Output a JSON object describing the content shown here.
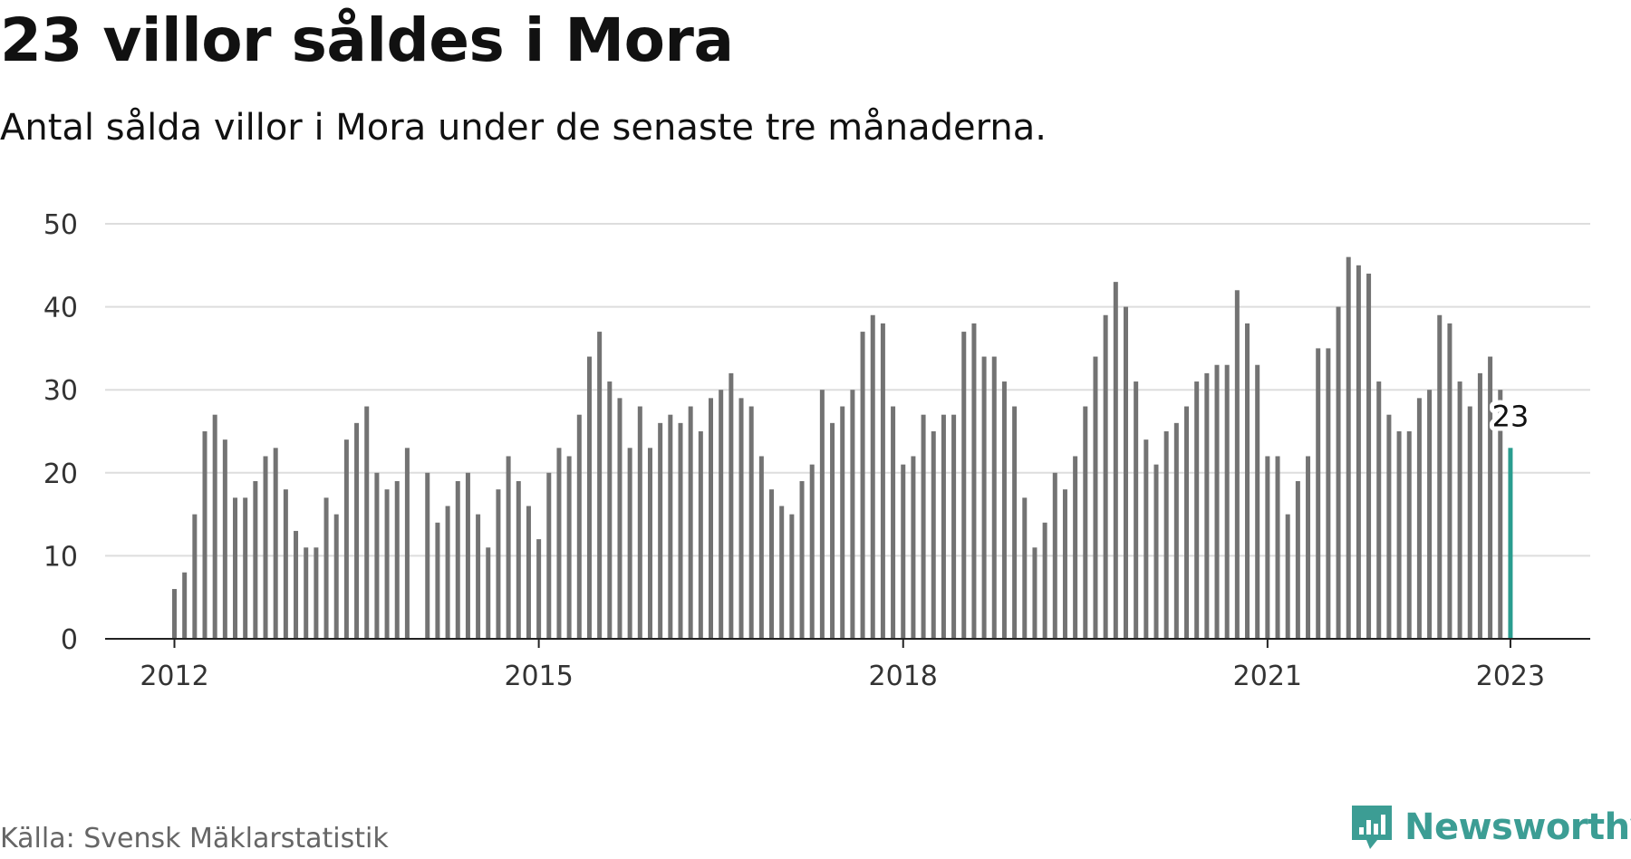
{
  "header": {
    "title": "23 villor såldes i Mora",
    "subtitle": "Antal sålda villor i Mora under de senaste tre månaderna."
  },
  "footer": {
    "source": "Källa: Svensk Mäklarstatistik",
    "brand": "Newsworthy"
  },
  "colors": {
    "bar": "#737373",
    "highlight": "#2a9d8f",
    "grid": "#dddddd",
    "axis": "#222222",
    "brand": "#3c9d94"
  },
  "chart_data": {
    "type": "bar",
    "x_start": "2012-01",
    "x_interval": "month",
    "x_ticks": [
      "2012",
      "2015",
      "2018",
      "2021",
      "2023"
    ],
    "y_ticks": [
      0,
      10,
      20,
      30,
      40,
      50
    ],
    "ylim": [
      0,
      50
    ],
    "grid": true,
    "highlight": {
      "x": "2023-01",
      "value": 23,
      "label": "23"
    },
    "values": [
      6,
      8,
      15,
      25,
      27,
      24,
      17,
      17,
      19,
      22,
      23,
      18,
      13,
      11,
      11,
      17,
      15,
      24,
      26,
      28,
      20,
      18,
      19,
      23,
      null,
      20,
      14,
      16,
      19,
      20,
      15,
      11,
      18,
      22,
      19,
      16,
      12,
      20,
      23,
      22,
      27,
      34,
      37,
      31,
      29,
      23,
      28,
      23,
      26,
      27,
      26,
      28,
      25,
      29,
      30,
      32,
      29,
      28,
      22,
      18,
      16,
      15,
      19,
      21,
      30,
      26,
      28,
      30,
      37,
      39,
      38,
      28,
      21,
      22,
      27,
      25,
      27,
      27,
      37,
      38,
      34,
      34,
      31,
      28,
      17,
      11,
      14,
      20,
      18,
      22,
      28,
      34,
      39,
      43,
      40,
      31,
      24,
      21,
      25,
      26,
      28,
      31,
      32,
      33,
      33,
      42,
      38,
      33,
      22,
      22,
      15,
      19,
      22,
      35,
      35,
      40,
      46,
      45,
      44,
      31,
      27,
      25,
      25,
      29,
      30,
      39,
      38,
      31,
      28,
      32,
      34,
      30,
      23
    ]
  }
}
